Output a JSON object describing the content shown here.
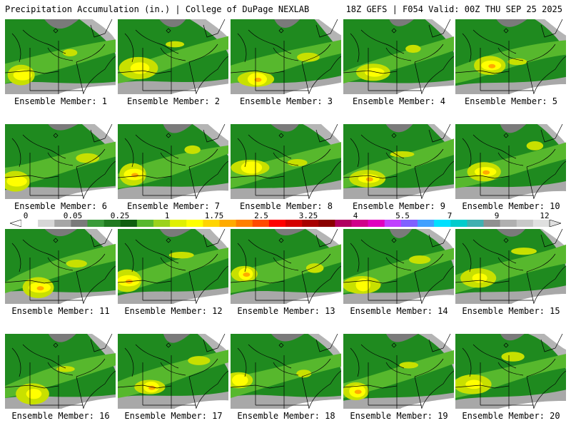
{
  "header": {
    "left": "Precipitation Accumulation (in.) | College of DuPage NEXLAB",
    "right": "18Z GEFS | F054 Valid: 00Z THU SEP 25 2025"
  },
  "member_prefix": "Ensemble Member: ",
  "members": [
    {
      "label": "Ensemble Member: 1",
      "peak": "yellow"
    },
    {
      "label": "Ensemble Member: 2",
      "peak": "yellow"
    },
    {
      "label": "Ensemble Member: 3",
      "peak": "orange"
    },
    {
      "label": "Ensemble Member: 4",
      "peak": "yellow"
    },
    {
      "label": "Ensemble Member: 5",
      "peak": "orange"
    },
    {
      "label": "Ensemble Member: 6",
      "peak": "yellow"
    },
    {
      "label": "Ensemble Member: 7",
      "peak": "orange"
    },
    {
      "label": "Ensemble Member: 8",
      "peak": "yellow"
    },
    {
      "label": "Ensemble Member: 9",
      "peak": "orange"
    },
    {
      "label": "Ensemble Member: 10",
      "peak": "orange"
    },
    {
      "label": "Ensemble Member: 11",
      "peak": "orange"
    },
    {
      "label": "Ensemble Member: 12",
      "peak": "orange"
    },
    {
      "label": "Ensemble Member: 13",
      "peak": "orange"
    },
    {
      "label": "Ensemble Member: 14",
      "peak": "yellow"
    },
    {
      "label": "Ensemble Member: 15",
      "peak": "yellow"
    },
    {
      "label": "Ensemble Member: 16",
      "peak": "yellow"
    },
    {
      "label": "Ensemble Member: 17",
      "peak": "orange"
    },
    {
      "label": "Ensemble Member: 18",
      "peak": "yellow"
    },
    {
      "label": "Ensemble Member: 19",
      "peak": "orange"
    },
    {
      "label": "Ensemble Member: 20",
      "peak": "yellow"
    }
  ],
  "colorbar": {
    "labels": [
      "0",
      "0.05",
      "0.25",
      "1",
      "1.75",
      "2.5",
      "3.25",
      "4",
      "5.5",
      "7",
      "9",
      "12"
    ],
    "colors": [
      "#ffffff",
      "#d6d6d6",
      "#a6a6a6",
      "#7a7a7a",
      "#3a9b3a",
      "#1f7a1f",
      "#0f5f0f",
      "#57b82d",
      "#9bd21c",
      "#e0f000",
      "#ffff00",
      "#ffd400",
      "#ffaa00",
      "#ff7f00",
      "#ff4a00",
      "#ff0000",
      "#d40000",
      "#a80000",
      "#8a0000",
      "#b00060",
      "#d0008a",
      "#e000c0",
      "#c040ff",
      "#8060ff",
      "#40a0ff",
      "#00e0ff",
      "#00cccc",
      "#40b0b0",
      "#909090",
      "#b0b0b0",
      "#c8c8c8",
      "#e0e0e0"
    ]
  }
}
